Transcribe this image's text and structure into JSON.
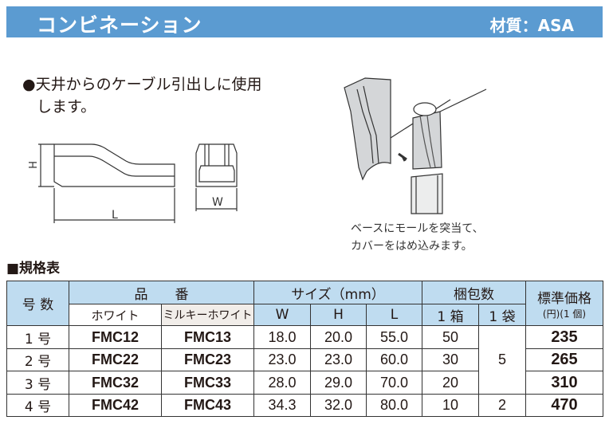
{
  "header": {
    "title": "コンビネーション",
    "material": "材質：ASA"
  },
  "description": {
    "line1": "●天井からのケーブル引出しに使用",
    "line2": "します。"
  },
  "dimension_labels": {
    "h": "H",
    "l": "L",
    "w": "W"
  },
  "caption": {
    "line1": "ベースにモールを突当て、",
    "line2": "カバーをはめ込みます。"
  },
  "section_title": "■規格表",
  "table": {
    "headers": {
      "number": "号 数",
      "part_no": "品　　番",
      "white": "ホワイト",
      "milky_white": "ミルキーホワイト",
      "size": "サイズ（mm）",
      "w": "W",
      "h": "H",
      "l": "L",
      "packing": "梱包数",
      "box": "1 箱",
      "bag": "1 袋",
      "price": "標準価格",
      "price_unit": "(円)(1 個)"
    },
    "bag_shared": "5",
    "rows": [
      {
        "no": "1 号",
        "white": "FMC12",
        "milky": "FMC13",
        "w": "18.0",
        "h": "20.0",
        "l": "55.0",
        "box": "50",
        "price": "235"
      },
      {
        "no": "2 号",
        "white": "FMC22",
        "milky": "FMC23",
        "w": "23.0",
        "h": "23.0",
        "l": "60.0",
        "box": "30",
        "price": "265"
      },
      {
        "no": "3 号",
        "white": "FMC32",
        "milky": "FMC33",
        "w": "28.0",
        "h": "29.0",
        "l": "70.0",
        "box": "20",
        "price": "310"
      },
      {
        "no": "4 号",
        "white": "FMC42",
        "milky": "FMC43",
        "w": "34.3",
        "h": "32.0",
        "l": "80.0",
        "box": "10",
        "bag": "2",
        "price": "470"
      }
    ]
  },
  "colors": {
    "header_bg": "#5b9bd1",
    "table_header_bg": "#bfdcf0",
    "milky_bg": "#f1ede9"
  }
}
